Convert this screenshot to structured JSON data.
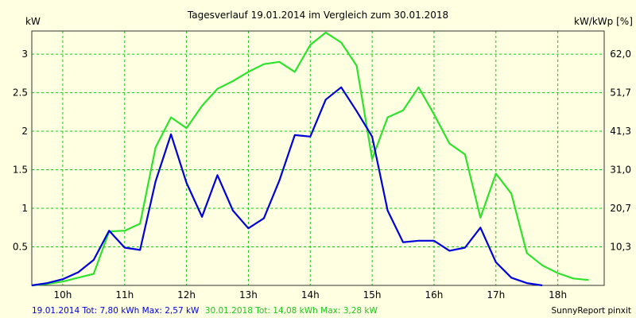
{
  "chart_data": {
    "type": "line",
    "title": "Tagesverlauf 19.01.2014 im Vergleich zum 30.01.2018",
    "ylabel_left": "kW",
    "ylabel_right": "kW/kWp [%]",
    "x_ticks": [
      "10h",
      "11h",
      "12h",
      "13h",
      "14h",
      "15h",
      "16h",
      "17h",
      "18h"
    ],
    "x_range": [
      9.5,
      18.75
    ],
    "y_ticks_left": [
      "0.5",
      "1",
      "1.5",
      "2",
      "2.5",
      "3"
    ],
    "y_ticks_left_values": [
      0.5,
      1,
      1.5,
      2,
      2.5,
      3
    ],
    "y_ticks_right": [
      "10,3",
      "20,7",
      "31,0",
      "41,3",
      "51,7",
      "62,0"
    ],
    "ylim": [
      0,
      3.3
    ],
    "grid": true,
    "series": [
      {
        "name": "19.01.2014",
        "color": "#0000d8",
        "x": [
          9.5,
          9.75,
          10.0,
          10.25,
          10.5,
          10.75,
          11.0,
          11.25,
          11.5,
          11.75,
          12.0,
          12.25,
          12.5,
          12.75,
          13.0,
          13.25,
          13.5,
          13.75,
          14.0,
          14.25,
          14.5,
          14.75,
          15.0,
          15.25,
          15.5,
          15.75,
          16.0,
          16.25,
          16.5,
          16.75,
          17.0,
          17.25,
          17.5,
          17.75
        ],
        "y": [
          0.0,
          0.03,
          0.08,
          0.17,
          0.33,
          0.71,
          0.49,
          0.46,
          1.35,
          1.96,
          1.33,
          0.89,
          1.43,
          0.97,
          0.74,
          0.87,
          1.36,
          1.95,
          1.93,
          2.41,
          2.57,
          2.26,
          1.93,
          0.97,
          0.56,
          0.58,
          0.58,
          0.45,
          0.49,
          0.75,
          0.3,
          0.1,
          0.03,
          0.0
        ]
      },
      {
        "name": "30.01.2018",
        "color": "#2ee22e",
        "x": [
          9.5,
          9.75,
          10.0,
          10.25,
          10.5,
          10.75,
          11.0,
          11.25,
          11.5,
          11.75,
          12.0,
          12.25,
          12.5,
          12.75,
          13.0,
          13.25,
          13.5,
          13.75,
          14.0,
          14.25,
          14.5,
          14.75,
          15.0,
          15.25,
          15.5,
          15.75,
          16.0,
          16.25,
          16.5,
          16.75,
          17.0,
          17.25,
          17.5,
          17.75,
          18.0,
          18.25,
          18.5
        ],
        "y": [
          0.0,
          0.02,
          0.05,
          0.1,
          0.15,
          0.7,
          0.71,
          0.8,
          1.79,
          2.18,
          2.04,
          2.33,
          2.55,
          2.65,
          2.77,
          2.87,
          2.9,
          2.77,
          3.12,
          3.28,
          3.15,
          2.85,
          1.64,
          2.18,
          2.27,
          2.57,
          2.22,
          1.84,
          1.7,
          0.88,
          1.45,
          1.19,
          0.42,
          0.26,
          0.16,
          0.09,
          0.07
        ]
      }
    ]
  },
  "footer": {
    "series1_text": "19.01.2014 Tot: 7,80 kWh Max: 2,57 kW",
    "series2_text": "30.01.2018 Tot: 14,08 kWh Max: 3,28 kW",
    "credit": "SunnyReport pinxit"
  }
}
